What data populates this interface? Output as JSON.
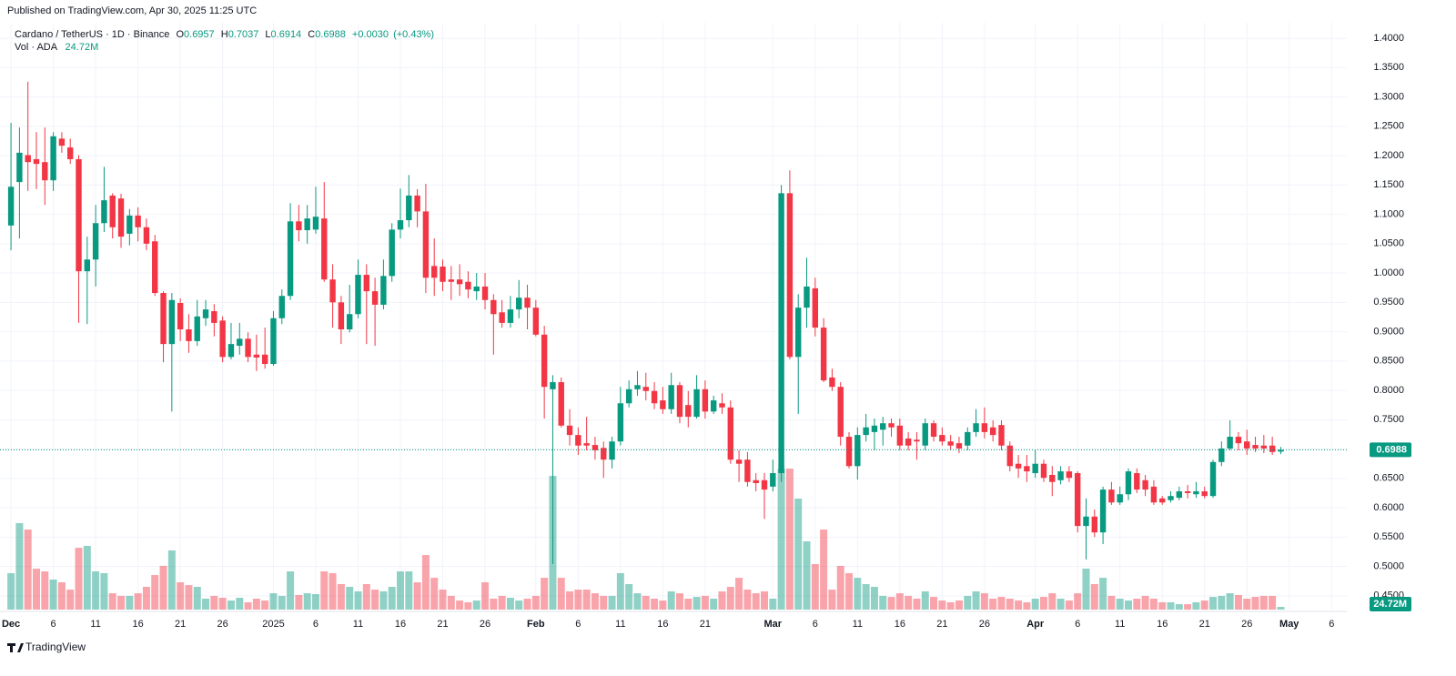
{
  "header": {
    "published": "Published on TradingView.com, Apr 30, 2025 11:25 UTC",
    "footer": "TradingView"
  },
  "chart_data": {
    "type": "candlestick",
    "symbol": "Cardano / TetherUS · 1D · Binance",
    "ohlc": [
      {
        "label": "O",
        "value": 0.6957
      },
      {
        "label": "H",
        "value": 0.7037
      },
      {
        "label": "L",
        "value": 0.6914
      },
      {
        "label": "C",
        "value": 0.6988
      }
    ],
    "change": "+0.0030",
    "change_pct": "(+0.43%)",
    "volume_name": "Vol · ADA",
    "volume_label": "24.72M",
    "up_color": "#089981",
    "down_color": "#f23645",
    "x": [
      0,
      1,
      2,
      3,
      4,
      5,
      6,
      7,
      8,
      9,
      10,
      11,
      12,
      13,
      14,
      15,
      16,
      17,
      18,
      19,
      20,
      21,
      22,
      23,
      24,
      25,
      26,
      27,
      28,
      29,
      30,
      31,
      32,
      33,
      34,
      35,
      36,
      37,
      38,
      39,
      40,
      41,
      42,
      43,
      44,
      45,
      46,
      47,
      48,
      49,
      50,
      51,
      52,
      53,
      54,
      55,
      56,
      57,
      58,
      59,
      60,
      61,
      62,
      63,
      64,
      65,
      66,
      67,
      68,
      69,
      70,
      71,
      72,
      73,
      74,
      75,
      76,
      77,
      78,
      79,
      80,
      81,
      82,
      83,
      84,
      85,
      86,
      87,
      88,
      89,
      90,
      91,
      92,
      93,
      94,
      95,
      96,
      97,
      98,
      99,
      100,
      101,
      102,
      103,
      104,
      105,
      106,
      107,
      108,
      109,
      110,
      111,
      112,
      113,
      114,
      115,
      116,
      117,
      118,
      119,
      120,
      121,
      122,
      123,
      124,
      125,
      126,
      127,
      128,
      129,
      130,
      131,
      132,
      133,
      134,
      135,
      136,
      137,
      138,
      139,
      140,
      141,
      142,
      143,
      144,
      145,
      146,
      147,
      148,
      149,
      150
    ],
    "open": [
      1.081,
      1.155,
      1.201,
      1.194,
      1.189,
      1.158,
      1.229,
      1.214,
      1.194,
      1.003,
      1.023,
      1.085,
      1.132,
      1.127,
      1.067,
      1.098,
      1.078,
      1.054,
      0.966,
      0.879,
      0.949,
      0.904,
      0.884,
      0.923,
      0.935,
      0.919,
      0.857,
      0.876,
      0.888,
      0.861,
      0.861,
      0.845,
      0.923,
      0.961,
      1.088,
      1.073,
      1.074,
      1.093,
      0.989,
      0.95,
      0.904,
      0.93,
      0.997,
      0.969,
      0.946,
      0.995,
      1.074,
      1.09,
      1.132,
      1.105,
      1.012,
      1.011,
      0.989,
      0.989,
      0.985,
      0.969,
      0.977,
      0.954,
      0.933,
      0.915,
      0.938,
      0.958,
      0.941,
      0.895,
      0.802,
      0.814,
      0.74,
      0.724,
      0.71,
      0.707,
      0.702,
      0.682,
      0.713,
      0.778,
      0.802,
      0.806,
      0.799,
      0.783,
      0.768,
      0.809,
      0.775,
      0.755,
      0.802,
      0.764,
      0.778,
      0.771,
      0.682,
      0.682,
      0.647,
      0.647,
      0.636,
      0.659,
      1.136,
      0.857,
      0.941,
      0.974,
      0.907,
      0.822,
      0.806,
      0.721,
      0.671,
      0.724,
      0.729,
      0.733,
      0.744,
      0.74,
      0.718,
      0.716,
      0.706,
      0.744,
      0.724,
      0.713,
      0.71,
      0.706,
      0.729,
      0.744,
      0.737,
      0.741,
      0.706,
      0.675,
      0.671,
      0.659,
      0.675,
      0.656,
      0.647,
      0.662,
      0.659,
      0.569,
      0.585,
      0.558,
      0.631,
      0.609,
      0.623,
      0.659,
      0.647,
      0.636,
      0.616,
      0.613,
      0.617,
      0.628,
      0.623,
      0.628,
      0.62,
      0.678,
      0.701,
      0.721,
      0.713,
      0.707,
      0.706,
      0.706,
      0.6957
    ],
    "high": [
      1.256,
      1.248,
      1.326,
      1.24,
      1.248,
      1.24,
      1.24,
      1.229,
      1.201,
      1.062,
      1.116,
      1.181,
      1.136,
      1.135,
      1.109,
      1.112,
      1.093,
      1.065,
      0.969,
      0.966,
      0.957,
      0.93,
      0.954,
      0.954,
      0.947,
      0.926,
      0.915,
      0.915,
      0.899,
      0.895,
      0.907,
      0.935,
      0.972,
      1.119,
      1.116,
      1.116,
      1.147,
      1.155,
      1.015,
      0.961,
      0.98,
      1.023,
      1.015,
      0.992,
      1.023,
      1.085,
      1.144,
      1.167,
      1.143,
      1.152,
      1.059,
      1.023,
      1.012,
      1.015,
      1.003,
      1.0,
      1.0,
      0.964,
      0.954,
      0.961,
      0.988,
      0.98,
      0.954,
      0.91,
      0.826,
      0.822,
      0.768,
      0.737,
      0.755,
      0.721,
      0.713,
      0.721,
      0.806,
      0.817,
      0.833,
      0.83,
      0.814,
      0.806,
      0.83,
      0.814,
      0.799,
      0.826,
      0.817,
      0.791,
      0.795,
      0.783,
      0.698,
      0.695,
      0.659,
      0.659,
      0.682,
      1.15,
      1.175,
      0.964,
      1.026,
      0.992,
      0.923,
      0.837,
      0.814,
      0.729,
      0.737,
      0.76,
      0.752,
      0.755,
      0.752,
      0.752,
      0.729,
      0.729,
      0.752,
      0.749,
      0.737,
      0.724,
      0.721,
      0.737,
      0.768,
      0.771,
      0.749,
      0.749,
      0.713,
      0.69,
      0.69,
      0.698,
      0.682,
      0.671,
      0.671,
      0.671,
      0.662,
      0.616,
      0.597,
      0.636,
      0.644,
      0.636,
      0.667,
      0.667,
      0.656,
      0.647,
      0.62,
      0.628,
      0.636,
      0.639,
      0.644,
      0.636,
      0.682,
      0.713,
      0.749,
      0.729,
      0.733,
      0.721,
      0.724,
      0.721,
      0.7037
    ],
    "low": [
      1.039,
      1.059,
      1.14,
      1.143,
      1.116,
      1.14,
      1.205,
      1.186,
      0.915,
      0.913,
      0.977,
      1.07,
      1.059,
      1.043,
      1.047,
      1.054,
      1.039,
      0.961,
      0.848,
      0.764,
      0.884,
      0.864,
      0.876,
      0.91,
      0.892,
      0.848,
      0.853,
      0.861,
      0.848,
      0.833,
      0.837,
      0.842,
      0.913,
      0.954,
      1.054,
      1.05,
      1.067,
      0.985,
      0.907,
      0.879,
      0.899,
      0.923,
      0.879,
      0.876,
      0.938,
      0.985,
      1.059,
      1.078,
      1.078,
      0.966,
      0.961,
      0.969,
      0.954,
      0.961,
      0.957,
      0.954,
      0.938,
      0.861,
      0.907,
      0.907,
      0.923,
      0.904,
      0.892,
      0.752,
      0.504,
      0.737,
      0.706,
      0.69,
      0.698,
      0.682,
      0.651,
      0.667,
      0.706,
      0.771,
      0.791,
      0.783,
      0.768,
      0.76,
      0.76,
      0.744,
      0.737,
      0.752,
      0.752,
      0.76,
      0.76,
      0.675,
      0.644,
      0.636,
      0.628,
      0.581,
      0.628,
      0.644,
      0.853,
      0.76,
      0.907,
      0.892,
      0.814,
      0.799,
      0.706,
      0.667,
      0.648,
      0.713,
      0.698,
      0.706,
      0.721,
      0.698,
      0.698,
      0.682,
      0.698,
      0.713,
      0.706,
      0.698,
      0.693,
      0.698,
      0.721,
      0.718,
      0.713,
      0.698,
      0.662,
      0.651,
      0.644,
      0.651,
      0.644,
      0.62,
      0.64,
      0.644,
      0.558,
      0.512,
      0.55,
      0.538,
      0.605,
      0.605,
      0.613,
      0.625,
      0.62,
      0.605,
      0.605,
      0.609,
      0.613,
      0.616,
      0.617,
      0.616,
      0.617,
      0.671,
      0.698,
      0.698,
      0.69,
      0.695,
      0.693,
      0.69,
      0.6914
    ],
    "close": [
      1.147,
      1.205,
      1.189,
      1.186,
      1.158,
      1.233,
      1.217,
      1.194,
      1.003,
      1.023,
      1.085,
      1.124,
      1.078,
      1.062,
      1.098,
      1.078,
      1.05,
      0.966,
      0.879,
      0.954,
      0.904,
      0.884,
      0.926,
      0.938,
      0.915,
      0.857,
      0.879,
      0.888,
      0.857,
      0.856,
      0.845,
      0.923,
      0.961,
      1.088,
      1.073,
      1.093,
      1.096,
      0.989,
      0.95,
      0.904,
      0.93,
      0.997,
      0.969,
      0.946,
      0.995,
      1.074,
      1.09,
      1.132,
      1.105,
      0.992,
      0.992,
      0.985,
      0.985,
      0.981,
      0.972,
      0.977,
      0.954,
      0.93,
      0.915,
      0.938,
      0.958,
      0.941,
      0.895,
      0.806,
      0.814,
      0.74,
      0.724,
      0.706,
      0.706,
      0.698,
      0.682,
      0.713,
      0.778,
      0.802,
      0.809,
      0.799,
      0.778,
      0.768,
      0.809,
      0.755,
      0.755,
      0.802,
      0.764,
      0.783,
      0.771,
      0.682,
      0.675,
      0.644,
      0.642,
      0.631,
      0.659,
      1.136,
      0.857,
      0.941,
      0.977,
      0.907,
      0.817,
      0.806,
      0.721,
      0.671,
      0.724,
      0.737,
      0.74,
      0.744,
      0.737,
      0.706,
      0.706,
      0.713,
      0.744,
      0.721,
      0.713,
      0.706,
      0.701,
      0.729,
      0.744,
      0.729,
      0.724,
      0.706,
      0.671,
      0.667,
      0.662,
      0.675,
      0.651,
      0.644,
      0.662,
      0.651,
      0.569,
      0.585,
      0.558,
      0.631,
      0.609,
      0.623,
      0.662,
      0.631,
      0.631,
      0.609,
      0.609,
      0.62,
      0.628,
      0.625,
      0.628,
      0.62,
      0.678,
      0.701,
      0.721,
      0.71,
      0.701,
      0.701,
      0.701,
      0.695,
      0.6988
    ],
    "volume": [
      330,
      783,
      725,
      371,
      346,
      272,
      247,
      181,
      560,
      577,
      346,
      330,
      148,
      124,
      124,
      148,
      206,
      313,
      396,
      536,
      247,
      222,
      206,
      99,
      124,
      107,
      82,
      107,
      66,
      99,
      82,
      148,
      124,
      346,
      132,
      148,
      140,
      346,
      330,
      231,
      206,
      165,
      231,
      181,
      165,
      206,
      346,
      346,
      247,
      494,
      288,
      181,
      124,
      82,
      66,
      82,
      247,
      99,
      124,
      107,
      82,
      99,
      124,
      288,
      1211,
      288,
      165,
      181,
      181,
      148,
      124,
      124,
      330,
      231,
      148,
      124,
      99,
      82,
      165,
      148,
      99,
      115,
      124,
      99,
      165,
      206,
      288,
      181,
      148,
      165,
      99,
      1277,
      1277,
      1005,
      618,
      412,
      725,
      181,
      396,
      330,
      288,
      231,
      206,
      124,
      115,
      148,
      124,
      99,
      165,
      115,
      82,
      66,
      82,
      124,
      165,
      148,
      99,
      115,
      99,
      82,
      66,
      99,
      115,
      148,
      99,
      82,
      148,
      371,
      231,
      288,
      124,
      99,
      82,
      99,
      124,
      99,
      66,
      66,
      49,
      49,
      66,
      82,
      115,
      124,
      148,
      132,
      99,
      115,
      124,
      124,
      24.72
    ],
    "xlim": [
      -1.3,
      157.8
    ],
    "ylim": [
      0.4265,
      1.4265
    ],
    "y2lim": [
      0,
      5315
    ],
    "yticks": [
      {
        "value": 1.4,
        "label": "1.4000"
      },
      {
        "value": 1.35,
        "label": "1.3500"
      },
      {
        "value": 1.3,
        "label": "1.3000"
      },
      {
        "value": 1.25,
        "label": "1.2500"
      },
      {
        "value": 1.2,
        "label": "1.2000"
      },
      {
        "value": 1.15,
        "label": "1.1500"
      },
      {
        "value": 1.1,
        "label": "1.1000"
      },
      {
        "value": 1.05,
        "label": "1.0500"
      },
      {
        "value": 1.0,
        "label": "1.0000"
      },
      {
        "value": 0.95,
        "label": "0.9500"
      },
      {
        "value": 0.9,
        "label": "0.9000"
      },
      {
        "value": 0.85,
        "label": "0.8500"
      },
      {
        "value": 0.8,
        "label": "0.8000"
      },
      {
        "value": 0.75,
        "label": "0.7500"
      },
      {
        "value": 0.7,
        "label": "0.7000"
      },
      {
        "value": 0.65,
        "label": "0.6500"
      },
      {
        "value": 0.6,
        "label": "0.6000"
      },
      {
        "value": 0.55,
        "label": "0.5500"
      },
      {
        "value": 0.5,
        "label": "0.5000"
      },
      {
        "value": 0.45,
        "label": "0.4500"
      }
    ],
    "xticks": [
      {
        "value": 0,
        "label": "Dec"
      },
      {
        "value": 5,
        "label": "6"
      },
      {
        "value": 10,
        "label": "11"
      },
      {
        "value": 15,
        "label": "16"
      },
      {
        "value": 20,
        "label": "21"
      },
      {
        "value": 25,
        "label": "26"
      },
      {
        "value": 31,
        "label": "2025"
      },
      {
        "value": 36,
        "label": "6"
      },
      {
        "value": 41,
        "label": "11"
      },
      {
        "value": 46,
        "label": "16"
      },
      {
        "value": 51,
        "label": "21"
      },
      {
        "value": 56,
        "label": "26"
      },
      {
        "value": 62,
        "label": "Feb"
      },
      {
        "value": 67,
        "label": "6"
      },
      {
        "value": 72,
        "label": "11"
      },
      {
        "value": 77,
        "label": "16"
      },
      {
        "value": 82,
        "label": "21"
      },
      {
        "value": 90,
        "label": "Mar"
      },
      {
        "value": 95,
        "label": "6"
      },
      {
        "value": 100,
        "label": "11"
      },
      {
        "value": 105,
        "label": "16"
      },
      {
        "value": 110,
        "label": "21"
      },
      {
        "value": 115,
        "label": "26"
      },
      {
        "value": 121,
        "label": "Apr"
      },
      {
        "value": 126,
        "label": "6"
      },
      {
        "value": 131,
        "label": "11"
      },
      {
        "value": 136,
        "label": "16"
      },
      {
        "value": 141,
        "label": "21"
      },
      {
        "value": 146,
        "label": "26"
      },
      {
        "value": 151,
        "label": "May"
      },
      {
        "value": 156,
        "label": "6"
      }
    ],
    "grid": true
  }
}
